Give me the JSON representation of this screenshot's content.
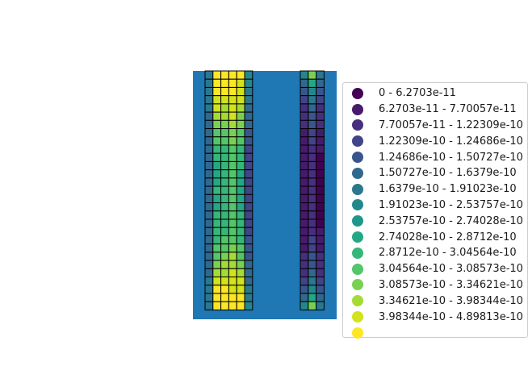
{
  "chart_data": {
    "type": "heatmap",
    "title": "",
    "xlabel": "",
    "ylabel": "",
    "axes_visible": false,
    "grid": false,
    "legend_placement": "right, clipped at figure edge",
    "background_color": "#1f77b4",
    "cell_edge_color": "#000000",
    "rows": 29,
    "groups": [
      {
        "name": "left block",
        "columns": 6,
        "class_grid": [
          [
            6,
            15,
            15,
            15,
            15,
            7
          ],
          [
            6,
            15,
            15,
            15,
            14,
            7
          ],
          [
            6,
            15,
            15,
            15,
            14,
            6
          ],
          [
            6,
            14,
            14,
            14,
            14,
            6
          ],
          [
            6,
            14,
            13,
            14,
            13,
            5
          ],
          [
            5,
            13,
            13,
            14,
            12,
            5
          ],
          [
            5,
            12,
            12,
            13,
            12,
            5
          ],
          [
            5,
            11,
            11,
            12,
            11,
            4
          ],
          [
            5,
            11,
            11,
            12,
            11,
            4
          ],
          [
            5,
            10,
            10,
            11,
            10,
            3
          ],
          [
            5,
            10,
            10,
            11,
            10,
            3
          ],
          [
            5,
            9,
            10,
            11,
            10,
            3
          ],
          [
            5,
            9,
            10,
            11,
            9,
            3
          ],
          [
            5,
            9,
            10,
            11,
            9,
            3
          ],
          [
            5,
            10,
            10,
            11,
            9,
            3
          ],
          [
            5,
            9,
            10,
            11,
            9,
            3
          ],
          [
            5,
            9,
            10,
            11,
            9,
            3
          ],
          [
            5,
            10,
            10,
            11,
            10,
            3
          ],
          [
            5,
            10,
            10,
            11,
            10,
            3
          ],
          [
            5,
            10,
            10,
            11,
            10,
            3
          ],
          [
            5,
            10,
            11,
            11,
            10,
            4
          ],
          [
            5,
            11,
            11,
            12,
            11,
            4
          ],
          [
            5,
            11,
            12,
            13,
            11,
            4
          ],
          [
            5,
            12,
            13,
            13,
            12,
            5
          ],
          [
            5,
            13,
            13,
            14,
            13,
            5
          ],
          [
            6,
            14,
            14,
            14,
            14,
            5
          ],
          [
            6,
            15,
            15,
            14,
            14,
            6
          ],
          [
            6,
            15,
            15,
            15,
            15,
            6
          ],
          [
            6,
            15,
            15,
            15,
            15,
            7
          ]
        ]
      },
      {
        "name": "right block",
        "columns": 3,
        "class_grid": [
          [
            7,
            12,
            6
          ],
          [
            5,
            9,
            5
          ],
          [
            4,
            7,
            4
          ],
          [
            3,
            6,
            3
          ],
          [
            2,
            5,
            2
          ],
          [
            2,
            4,
            2
          ],
          [
            2,
            4,
            2
          ],
          [
            1,
            3,
            1
          ],
          [
            1,
            3,
            1
          ],
          [
            1,
            2,
            1
          ],
          [
            1,
            2,
            0
          ],
          [
            1,
            2,
            0
          ],
          [
            1,
            2,
            0
          ],
          [
            1,
            2,
            0
          ],
          [
            1,
            2,
            0
          ],
          [
            1,
            2,
            0
          ],
          [
            1,
            2,
            0
          ],
          [
            1,
            2,
            0
          ],
          [
            1,
            2,
            0
          ],
          [
            1,
            2,
            1
          ],
          [
            1,
            3,
            1
          ],
          [
            1,
            3,
            1
          ],
          [
            2,
            4,
            2
          ],
          [
            2,
            4,
            2
          ],
          [
            2,
            5,
            2
          ],
          [
            3,
            6,
            3
          ],
          [
            4,
            7,
            4
          ],
          [
            5,
            9,
            5
          ],
          [
            7,
            12,
            6
          ]
        ]
      }
    ],
    "legend": [
      {
        "label": "0 - 6.2703e-11",
        "color": "#440154"
      },
      {
        "label": "6.2703e-11 - 7.70057e-11",
        "color": "#481a6c"
      },
      {
        "label": "7.70057e-11 - 1.22309e-10",
        "color": "#472f7d"
      },
      {
        "label": "1.22309e-10 - 1.24686e-10",
        "color": "#414487"
      },
      {
        "label": "1.24686e-10 - 1.50727e-10",
        "color": "#39568c"
      },
      {
        "label": "1.50727e-10 - 1.6379e-10",
        "color": "#31688e"
      },
      {
        "label": "1.6379e-10 - 1.91023e-10",
        "color": "#2a788e"
      },
      {
        "label": "1.91023e-10 - 2.53757e-10",
        "color": "#23888e"
      },
      {
        "label": "2.53757e-10 - 2.74028e-10",
        "color": "#1f988b"
      },
      {
        "label": "2.74028e-10 - 2.8712e-10",
        "color": "#22a884"
      },
      {
        "label": "2.8712e-10 - 3.04564e-10",
        "color": "#35b779"
      },
      {
        "label": "3.04564e-10 - 3.08573e-10",
        "color": "#54c568"
      },
      {
        "label": "3.08573e-10 - 3.34621e-10",
        "color": "#7ad151"
      },
      {
        "label": "3.34621e-10 - 3.98344e-10",
        "color": "#a5db36"
      },
      {
        "label": "3.98344e-10 - 4.89813e-10",
        "color": "#d2e21b"
      },
      {
        "label": "",
        "color": "#fde725"
      }
    ]
  }
}
